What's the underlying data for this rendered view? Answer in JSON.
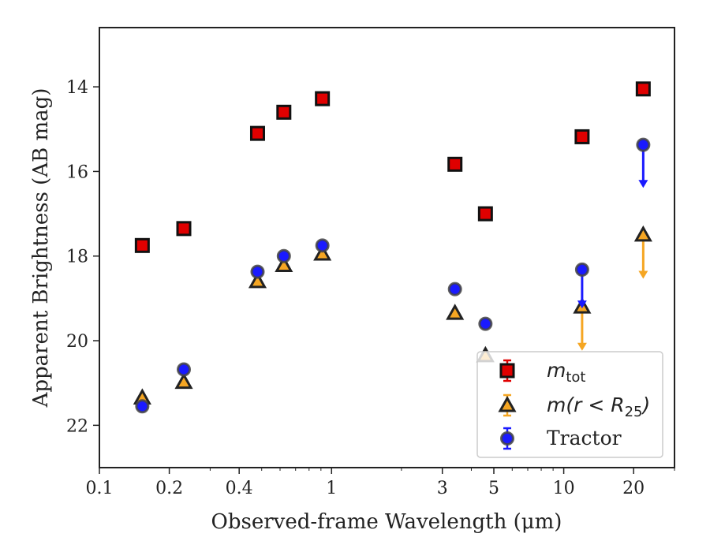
{
  "chart_data": {
    "type": "scatter",
    "title": "",
    "xlabel": "Observed-frame Wavelength (μm)",
    "ylabel": "Apparent Brightness (AB mag)",
    "xscale": "log",
    "xlim": [
      0.1,
      30
    ],
    "ylim": [
      23.0,
      12.6
    ],
    "y_inverted": true,
    "xticks": [
      {
        "value": 0.1,
        "label": "0.1"
      },
      {
        "value": 0.2,
        "label": "0.2"
      },
      {
        "value": 0.4,
        "label": "0.4"
      },
      {
        "value": 1,
        "label": "1"
      },
      {
        "value": 3,
        "label": "3"
      },
      {
        "value": 5,
        "label": "5"
      },
      {
        "value": 10,
        "label": "10"
      },
      {
        "value": 20,
        "label": "20"
      }
    ],
    "yticks": [
      {
        "value": 14,
        "label": "14"
      },
      {
        "value": 16,
        "label": "16"
      },
      {
        "value": 18,
        "label": "18"
      },
      {
        "value": 20,
        "label": "20"
      },
      {
        "value": 22,
        "label": "22"
      }
    ],
    "grid": false,
    "legend_position": "lower-right",
    "series": [
      {
        "name": "m_tot",
        "legend_label": {
          "base": "m",
          "sub": "tot"
        },
        "marker": "square",
        "color": "#e00000",
        "edge": "#111111",
        "points": [
          {
            "x": 0.153,
            "y": 17.75
          },
          {
            "x": 0.231,
            "y": 17.35
          },
          {
            "x": 0.48,
            "y": 15.1
          },
          {
            "x": 0.623,
            "y": 14.6
          },
          {
            "x": 0.913,
            "y": 14.28
          },
          {
            "x": 3.4,
            "y": 15.83
          },
          {
            "x": 4.6,
            "y": 17.0
          },
          {
            "x": 12.0,
            "y": 15.18
          },
          {
            "x": 22.0,
            "y": 14.05
          }
        ]
      },
      {
        "name": "m(r < R_25)",
        "legend_label": {
          "base": "m(r < R",
          "sub": "25",
          "tail": ")"
        },
        "marker": "triangle",
        "color": "#f5a623",
        "edge": "#222222",
        "points": [
          {
            "x": 0.153,
            "y": 21.35
          },
          {
            "x": 0.231,
            "y": 20.98
          },
          {
            "x": 0.48,
            "y": 18.6
          },
          {
            "x": 0.623,
            "y": 18.22
          },
          {
            "x": 0.913,
            "y": 17.95
          },
          {
            "x": 3.4,
            "y": 19.35
          },
          {
            "x": 4.6,
            "y": 20.35
          },
          {
            "x": 12.0,
            "y": 19.2,
            "upper_limit": true,
            "arrow_to": 20.2
          },
          {
            "x": 22.0,
            "y": 17.5,
            "upper_limit": true,
            "arrow_to": 18.5
          }
        ]
      },
      {
        "name": "Tractor",
        "legend_label": {
          "base": "Tractor"
        },
        "marker": "circle",
        "color": "#1a1aff",
        "edge": "#444444",
        "points": [
          {
            "x": 0.153,
            "y": 21.55
          },
          {
            "x": 0.231,
            "y": 20.68
          },
          {
            "x": 0.48,
            "y": 18.37
          },
          {
            "x": 0.623,
            "y": 18.0
          },
          {
            "x": 0.913,
            "y": 17.75
          },
          {
            "x": 3.4,
            "y": 18.78
          },
          {
            "x": 4.6,
            "y": 19.6
          },
          {
            "x": 12.0,
            "y": 18.32,
            "upper_limit": true,
            "arrow_to": 19.2
          },
          {
            "x": 22.0,
            "y": 15.37,
            "upper_limit": true,
            "arrow_to": 16.35
          }
        ]
      }
    ]
  }
}
